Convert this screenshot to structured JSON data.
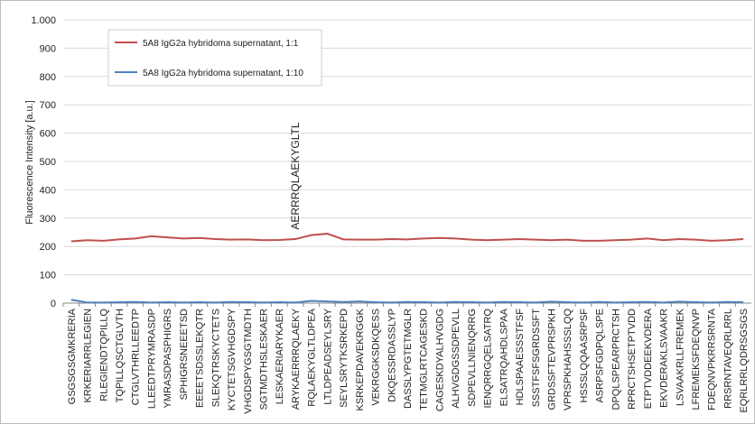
{
  "chart_data": {
    "type": "line",
    "y_label": "Fluorescence Intensity [a.u.]",
    "annotations": [
      "AERRRQLAEKYGLTL"
    ],
    "categories": [
      "GSGSGSGMKRERIA",
      "KRKERIARRLEGIEN",
      "RLEGIENDTQPILLQ",
      "TQPILLQSCTGLVTH",
      "CTGLVTHRLLEEDTP",
      "LLEEDTPRYMRASDP",
      "YMRASDPASPHIGRS",
      "SPHIGRSNEEETSD",
      "EEEETSDSSLEKQTR",
      "SLEKQTRSKYCTETS",
      "KYCTETSGVHGDSPY",
      "VHGDSPYGSGTMDTH",
      "SGTMDTHSLESKAER",
      "LESKAERIARYKAER",
      "ARYKAERRRQLAEKY",
      "RQLAEKYGLTLDPEA",
      "LTLDPEADSEYLSRY",
      "SEYLSRYTKSRKEPD",
      "KSRKEPDAVEKRGGK",
      "VEKRGGKSDKQESS",
      "DKQESSRDASSLYP",
      "DASSLYPGTETMGLR",
      "TETMGLRTCAGESKD",
      "CAGESKDYALHVGDG",
      "ALHVGDGSSDPEVLL",
      "SDPEVLLNIENQRRG",
      "IENQRRGQELSATRQ",
      "ELSATRQAHDLSPAA",
      "HDLSPAAESSSTFSF",
      "SSSTFSFSGRDSSFT",
      "GRDSSFTEVPRSPKH",
      "VPRSPKHAHSSSLQQ",
      "HSSSLQQAASRPSF",
      "ASRPSFGDPQLSPE",
      "DPQLSPEARPRCTSH",
      "RPRCTSHSETPTVDD",
      "ETPTVDDEEKVDERA",
      "EKVDERAKLSVAAKR",
      "LSVAAKRLLFREMEK",
      "LFREMEKSFDEQNVP",
      "FDEQNVPKRRSRNTA",
      "RRSRNTAVEQRLRRL",
      "EQRLRRLQDRSGSGS"
    ],
    "series": [
      {
        "name": "5A8 IgG2a hybridoma supernatant, 1:1",
        "color": "#c0504d",
        "values": [
          218,
          222,
          220,
          225,
          228,
          236,
          232,
          228,
          230,
          226,
          224,
          225,
          222,
          223,
          226,
          240,
          245,
          225,
          224,
          224,
          226,
          225,
          228,
          230,
          228,
          224,
          222,
          224,
          226,
          224,
          222,
          224,
          220,
          220,
          222,
          224,
          228,
          222,
          226,
          224,
          220,
          222,
          226
        ]
      },
      {
        "name": "5A8 IgG2a hybridoma supernatant, 1:10",
        "color": "#4f81bd",
        "values": [
          12,
          2,
          2,
          3,
          4,
          2,
          3,
          2,
          3,
          2,
          4,
          3,
          2,
          3,
          2,
          8,
          6,
          4,
          6,
          3,
          2,
          4,
          3,
          2,
          4,
          3,
          2,
          4,
          3,
          2,
          5,
          3,
          2,
          4,
          2,
          3,
          4,
          2,
          5,
          3,
          2,
          4,
          3
        ]
      }
    ],
    "ylim": [
      0,
      1000
    ],
    "yticks": [
      0,
      100,
      200,
      300,
      400,
      500,
      600,
      700,
      800,
      {
        "value": 900,
        "label": "900"
      },
      {
        "value": 1000,
        "label": "1.000"
      }
    ],
    "grid": true,
    "legend": "top-left"
  }
}
